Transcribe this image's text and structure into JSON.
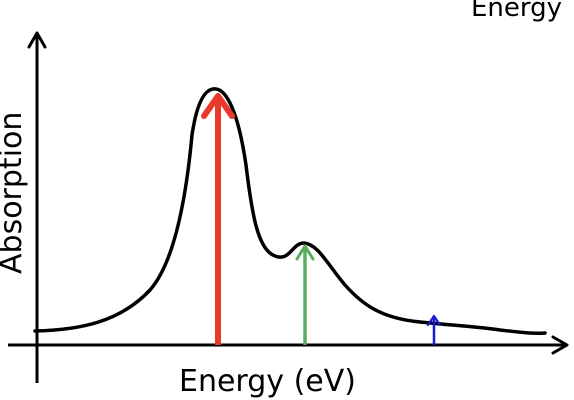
{
  "labels": {
    "y_axis": "Absorption",
    "x_axis": "Energy (eV)",
    "corner_partial": "Energy"
  },
  "chart_data": {
    "type": "line",
    "xlabel": "Energy (eV)",
    "ylabel": "Absorption",
    "title": "",
    "series": [
      {
        "description": "absorption curve",
        "peaks": [
          {
            "rank": "main",
            "relative_height": 1.0
          },
          {
            "rank": "secondary",
            "relative_height": 0.39
          },
          {
            "rank": "weak",
            "relative_height": 0.08
          }
        ]
      }
    ],
    "arrows": [
      {
        "color": "#e8392a",
        "relative_height": 1.0
      },
      {
        "color": "#5aad5e",
        "relative_height": 0.39
      },
      {
        "color": "#1a1ad4",
        "relative_height": 0.08
      }
    ],
    "grid": false,
    "ticks": false
  }
}
